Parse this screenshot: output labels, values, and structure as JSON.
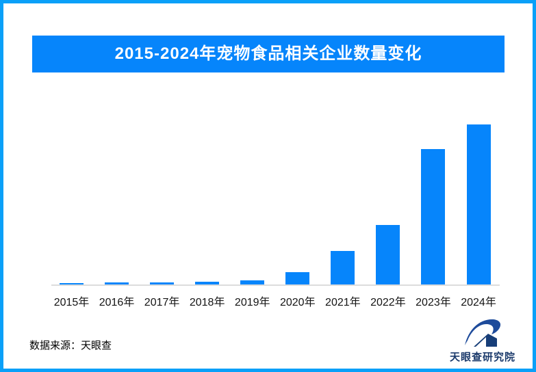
{
  "title": "2015-2024年宠物食品相关企业数量变化",
  "source": "数据来源：天眼查",
  "logo": {
    "icon": "tianyancha-eye-logo-icon",
    "text": "天眼查研究院"
  },
  "colors": {
    "frame": "#0aa0f8",
    "banner": "#0685fb",
    "bar": "#0685fb",
    "axis_line": "#dcdcdc",
    "tick_label": "#141414",
    "logo_text": "#1b3a6b",
    "banner_text": "#ffffff",
    "background": "#ffffff"
  },
  "chart_data": {
    "type": "bar",
    "title": "2015-2024年宠物食品相关企业数量变化",
    "categories": [
      "2015年",
      "2016年",
      "2017年",
      "2018年",
      "2019年",
      "2020年",
      "2021年",
      "2022年",
      "2023年",
      "2024年"
    ],
    "values": [
      3,
      4,
      4,
      5,
      7,
      19,
      50,
      88,
      199,
      235
    ],
    "value_note": "no y-axis or data labels shown; values are relative bar heights in screenshot pixels",
    "xlabel": "",
    "ylabel": "",
    "ylim": [
      0,
      235
    ],
    "grid": false,
    "legend": false,
    "bar_color": "#0685fb"
  }
}
